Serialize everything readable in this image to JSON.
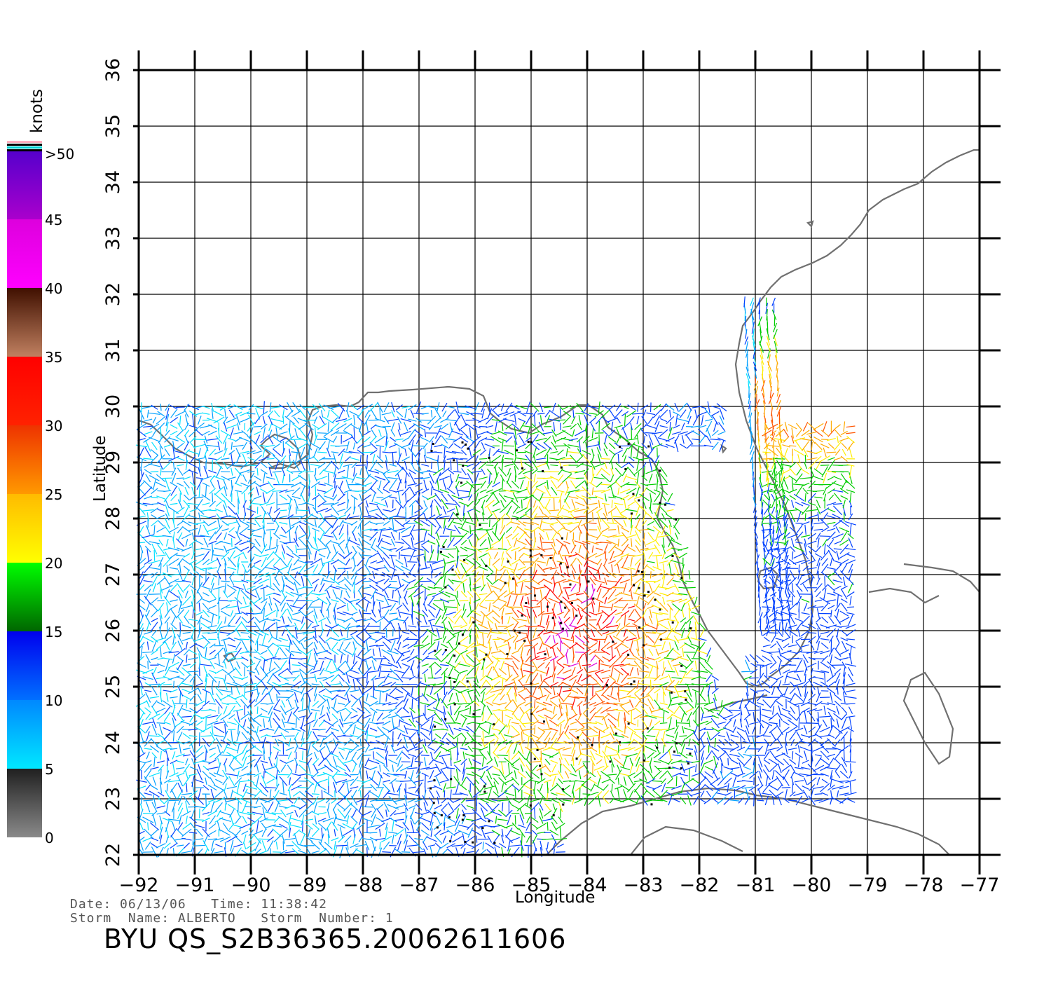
{
  "map": {
    "lon_min": -92,
    "lon_max": -77,
    "lat_min": 22,
    "lat_max": 36,
    "lon_ticks": [
      "−92",
      "−91",
      "−90",
      "−89",
      "−88",
      "−87",
      "−86",
      "−85",
      "−84",
      "−83",
      "−82",
      "−81",
      "−80",
      "−79",
      "−78",
      "−77"
    ],
    "lat_ticks": [
      "22",
      "23",
      "24",
      "25",
      "26",
      "27",
      "28",
      "29",
      "30",
      "31",
      "32",
      "33",
      "34",
      "35",
      "36"
    ],
    "xlabel": "Longitude",
    "ylabel": "Latitude"
  },
  "colorbar": {
    "unit": "knots",
    "labels": [
      ">50",
      "45",
      "40",
      "35",
      "30",
      "25",
      "20",
      "15",
      "10",
      "5",
      "0"
    ],
    "bands": [
      {
        "from": 0,
        "to": 5,
        "colors": [
          "#8a8a8a",
          "#202020"
        ]
      },
      {
        "from": 5,
        "to": 10,
        "colors": [
          "#00e8ff",
          "#0088ff"
        ]
      },
      {
        "from": 10,
        "to": 15,
        "colors": [
          "#0070ff",
          "#0000ee"
        ]
      },
      {
        "from": 15,
        "to": 20,
        "colors": [
          "#006600",
          "#00ff00"
        ]
      },
      {
        "from": 20,
        "to": 25,
        "colors": [
          "#ffff00",
          "#ffbb00"
        ]
      },
      {
        "from": 25,
        "to": 30,
        "colors": [
          "#ff9900",
          "#ee3300"
        ]
      },
      {
        "from": 30,
        "to": 35,
        "colors": [
          "#ff2200",
          "#ff0000"
        ]
      },
      {
        "from": 35,
        "to": 40,
        "colors": [
          "#c08060",
          "#401000"
        ]
      },
      {
        "from": 40,
        "to": 45,
        "colors": [
          "#ff00ff",
          "#dd00dd"
        ]
      },
      {
        "from": 45,
        "to": 50,
        "colors": [
          "#aa00cc",
          "#5500cc"
        ]
      }
    ]
  },
  "wind_field": {
    "colors": [
      "#777777",
      "#00e0ff",
      "#00a0ff",
      "#0040ff",
      "#00cc00",
      "#ffee00",
      "#ffaa00",
      "#ff5500",
      "#ff0000",
      "#a05030",
      "#dd00dd",
      "#6600cc"
    ],
    "swaths": [
      {
        "lon_range": [
          -92,
          -79.1
        ],
        "lat_range": [
          22,
          30
        ]
      },
      {
        "lon_range": [
          -81,
          -79.1
        ],
        "lat_range": [
          22,
          31.9
        ]
      }
    ]
  },
  "info": {
    "line1": "Date: 06/13/06   Time: 11:38:42",
    "line2": "Storm  Name: ALBERTO   Storm  Number: 1",
    "title": "BYU  QS_S2B36365.20062611606"
  }
}
